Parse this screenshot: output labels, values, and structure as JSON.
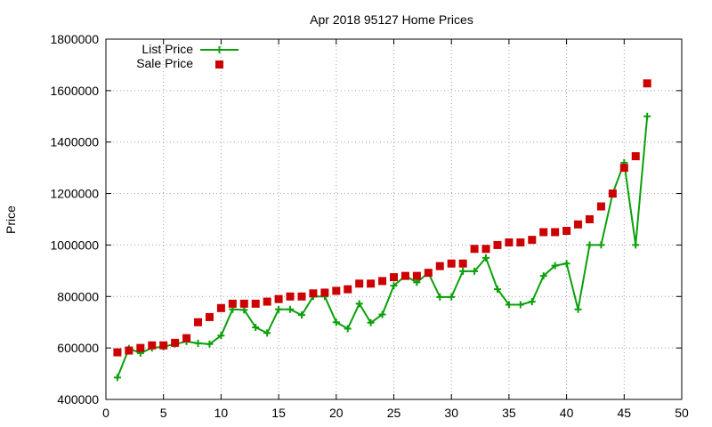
{
  "chart_data": {
    "type": "scatter",
    "title": "Apr 2018 95127 Home Prices",
    "xlabel": "",
    "ylabel": "Price",
    "xlim": [
      0,
      50
    ],
    "ylim": [
      400000,
      1800000
    ],
    "x_ticks": [
      "0",
      "5",
      "10",
      "15",
      "20",
      "25",
      "30",
      "35",
      "40",
      "45",
      "50"
    ],
    "y_ticks": [
      "400000",
      "600000",
      "800000",
      "1000000",
      "1200000",
      "1400000",
      "1600000",
      "1800000"
    ],
    "grid": true,
    "legend_position": "top-left",
    "series": [
      {
        "name": "List Price",
        "style": "line-with-plus-markers",
        "color": "#0aa00a",
        "x": [
          1,
          2,
          3,
          4,
          5,
          6,
          7,
          8,
          9,
          10,
          11,
          12,
          13,
          14,
          15,
          16,
          17,
          18,
          19,
          20,
          21,
          22,
          23,
          24,
          25,
          26,
          27,
          28,
          29,
          30,
          31,
          32,
          33,
          34,
          35,
          36,
          37,
          38,
          39,
          40,
          41,
          42,
          43,
          44,
          45,
          46,
          47
        ],
        "values": [
          485000,
          598000,
          580000,
          600000,
          605000,
          615000,
          625000,
          618000,
          615000,
          648000,
          750000,
          748000,
          680000,
          658000,
          750000,
          750000,
          728000,
          800000,
          800000,
          700000,
          675000,
          772000,
          698000,
          730000,
          842000,
          880000,
          855000,
          892000,
          798000,
          798000,
          898000,
          898000,
          950000,
          828000,
          768000,
          768000,
          780000,
          880000,
          920000,
          928000,
          750000,
          1000000,
          1000000,
          1200000,
          1320000,
          1000000,
          1500000
        ]
      },
      {
        "name": "Sale Price",
        "style": "square-markers",
        "color": "#cc0000",
        "x": [
          1,
          2,
          3,
          4,
          5,
          6,
          7,
          8,
          9,
          10,
          11,
          12,
          13,
          14,
          15,
          16,
          17,
          18,
          19,
          20,
          21,
          22,
          23,
          24,
          25,
          26,
          27,
          28,
          29,
          30,
          31,
          32,
          33,
          34,
          35,
          36,
          37,
          38,
          39,
          40,
          41,
          42,
          43,
          44,
          45,
          46,
          47
        ],
        "values": [
          583000,
          590000,
          600000,
          610000,
          610000,
          620000,
          638000,
          700000,
          720000,
          755000,
          772000,
          772000,
          772000,
          780000,
          790000,
          800000,
          800000,
          812000,
          815000,
          822000,
          828000,
          850000,
          850000,
          860000,
          875000,
          880000,
          880000,
          892000,
          918000,
          928000,
          928000,
          985000,
          985000,
          1000000,
          1010000,
          1010000,
          1020000,
          1050000,
          1050000,
          1055000,
          1080000,
          1100000,
          1150000,
          1200000,
          1300000,
          1345000,
          1628000
        ]
      }
    ]
  }
}
